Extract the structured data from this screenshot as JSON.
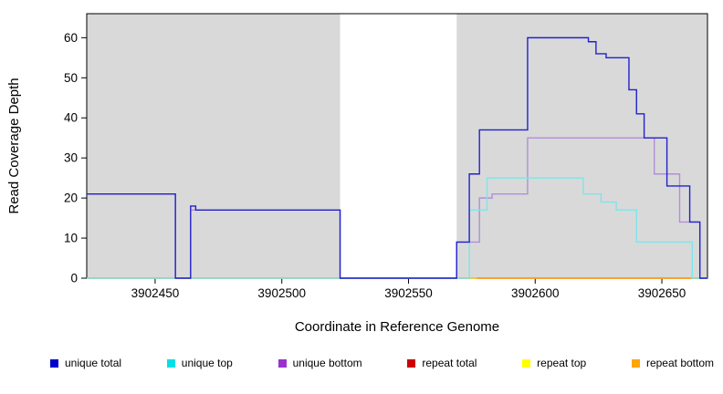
{
  "chart_data": {
    "type": "line",
    "title": "",
    "xlabel": "Coordinate in Reference Genome",
    "ylabel": "Read Coverage Depth",
    "x_domain": [
      3902423,
      3902668
    ],
    "y_domain": [
      0,
      66
    ],
    "x_ticks": [
      3902450,
      3902500,
      3902550,
      3902600,
      3902650
    ],
    "y_ticks": [
      0,
      10,
      20,
      30,
      40,
      50,
      60
    ],
    "grid": false,
    "legend_position": "bottom",
    "shaded_regions": [
      {
        "x0": 3902423,
        "x1": 3902523,
        "color": "#d9d9d9"
      },
      {
        "x0": 3902569,
        "x1": 3902668,
        "color": "#d9d9d9"
      }
    ],
    "series": [
      {
        "name": "repeat total",
        "color": "#cc0000",
        "points": [
          [
            3902423,
            0
          ],
          [
            3902668,
            0
          ]
        ]
      },
      {
        "name": "repeat top",
        "color": "#e8e84a",
        "points": [
          [
            3902423,
            0
          ],
          [
            3902668,
            0
          ]
        ]
      },
      {
        "name": "repeat bottom",
        "color": "#ff9f1a",
        "points": [
          [
            3902577,
            0
          ],
          [
            3902668,
            0
          ]
        ]
      },
      {
        "name": "unique bottom",
        "color": "#b18fd8",
        "points": [
          [
            3902423,
            21
          ],
          [
            3902458,
            0
          ],
          [
            3902464,
            17
          ],
          [
            3902523,
            0
          ],
          [
            3902569,
            9
          ],
          [
            3902578,
            20
          ],
          [
            3902583,
            21
          ],
          [
            3902597,
            35
          ],
          [
            3902647,
            26
          ],
          [
            3902657,
            14
          ],
          [
            3902665,
            0
          ],
          [
            3902668,
            0
          ]
        ]
      },
      {
        "name": "unique top",
        "color": "#7fe5e8",
        "points": [
          [
            3902423,
            0
          ],
          [
            3902574,
            17
          ],
          [
            3902581,
            25
          ],
          [
            3902619,
            21
          ],
          [
            3902626,
            19
          ],
          [
            3902632,
            17
          ],
          [
            3902640,
            9
          ],
          [
            3902662,
            0
          ],
          [
            3902668,
            0
          ]
        ]
      },
      {
        "name": "unique total",
        "color": "#2222cc",
        "points": [
          [
            3902423,
            21
          ],
          [
            3902458,
            0
          ],
          [
            3902464,
            18
          ],
          [
            3902466,
            17
          ],
          [
            3902523,
            0
          ],
          [
            3902569,
            9
          ],
          [
            3902574,
            26
          ],
          [
            3902578,
            37
          ],
          [
            3902597,
            60
          ],
          [
            3902621,
            59
          ],
          [
            3902624,
            56
          ],
          [
            3902628,
            55
          ],
          [
            3902637,
            47
          ],
          [
            3902640,
            41
          ],
          [
            3902643,
            35
          ],
          [
            3902652,
            23
          ],
          [
            3902661,
            14
          ],
          [
            3902665,
            0
          ],
          [
            3902668,
            0
          ]
        ]
      }
    ],
    "legend": [
      {
        "label": "unique total",
        "color": "#0000cd"
      },
      {
        "label": "unique top",
        "color": "#00e0e6"
      },
      {
        "label": "unique bottom",
        "color": "#9932cc"
      },
      {
        "label": "repeat total",
        "color": "#cd0000"
      },
      {
        "label": "repeat top",
        "color": "#ffff00"
      },
      {
        "label": "repeat bottom",
        "color": "#ffa500"
      }
    ]
  }
}
